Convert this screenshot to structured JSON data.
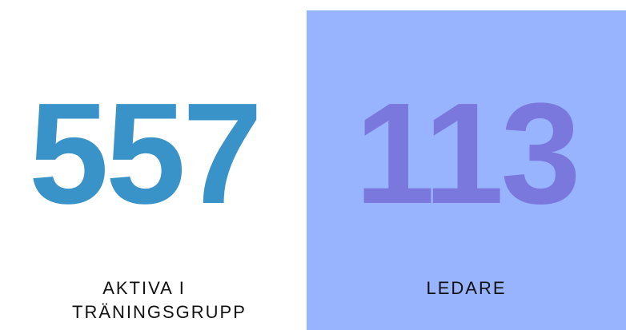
{
  "stats": [
    {
      "value": "557",
      "label": "AKTIVA I TRÄNINGSGRUPP"
    },
    {
      "value": "113",
      "label": "LEDARE"
    }
  ]
}
